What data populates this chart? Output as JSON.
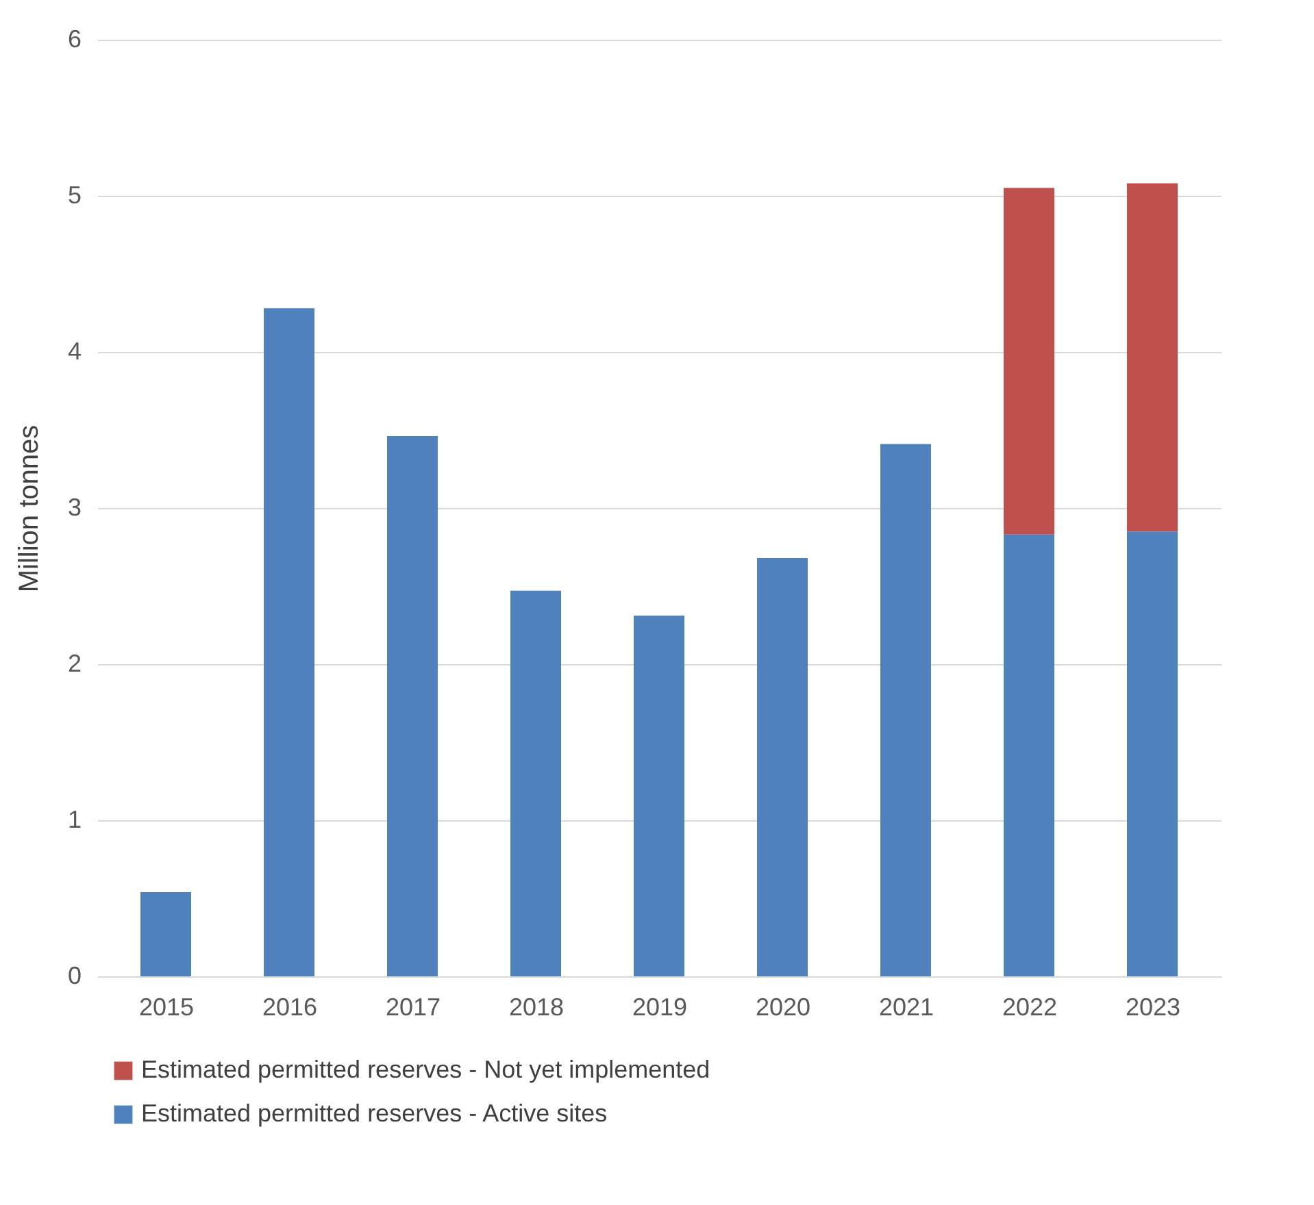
{
  "chart_data": {
    "type": "bar",
    "stacked": true,
    "ylabel": "Million tonnes",
    "categories": [
      "2015",
      "2016",
      "2017",
      "2018",
      "2019",
      "2020",
      "2021",
      "2022",
      "2023"
    ],
    "series": [
      {
        "name": "Estimated permitted reserves - Active sites",
        "color": "#4f81bd",
        "values": [
          0.54,
          4.28,
          3.46,
          2.47,
          2.31,
          2.68,
          3.41,
          2.83,
          2.85
        ]
      },
      {
        "name": "Estimated permitted reserves - Not yet implemented",
        "color": "#c0504d",
        "values": [
          null,
          null,
          null,
          null,
          null,
          null,
          null,
          2.22,
          2.23
        ]
      }
    ],
    "ylim": [
      0,
      6
    ],
    "yticks": [
      0,
      1,
      2,
      3,
      4,
      5,
      6
    ],
    "grid": "y",
    "legend": "bottom"
  }
}
